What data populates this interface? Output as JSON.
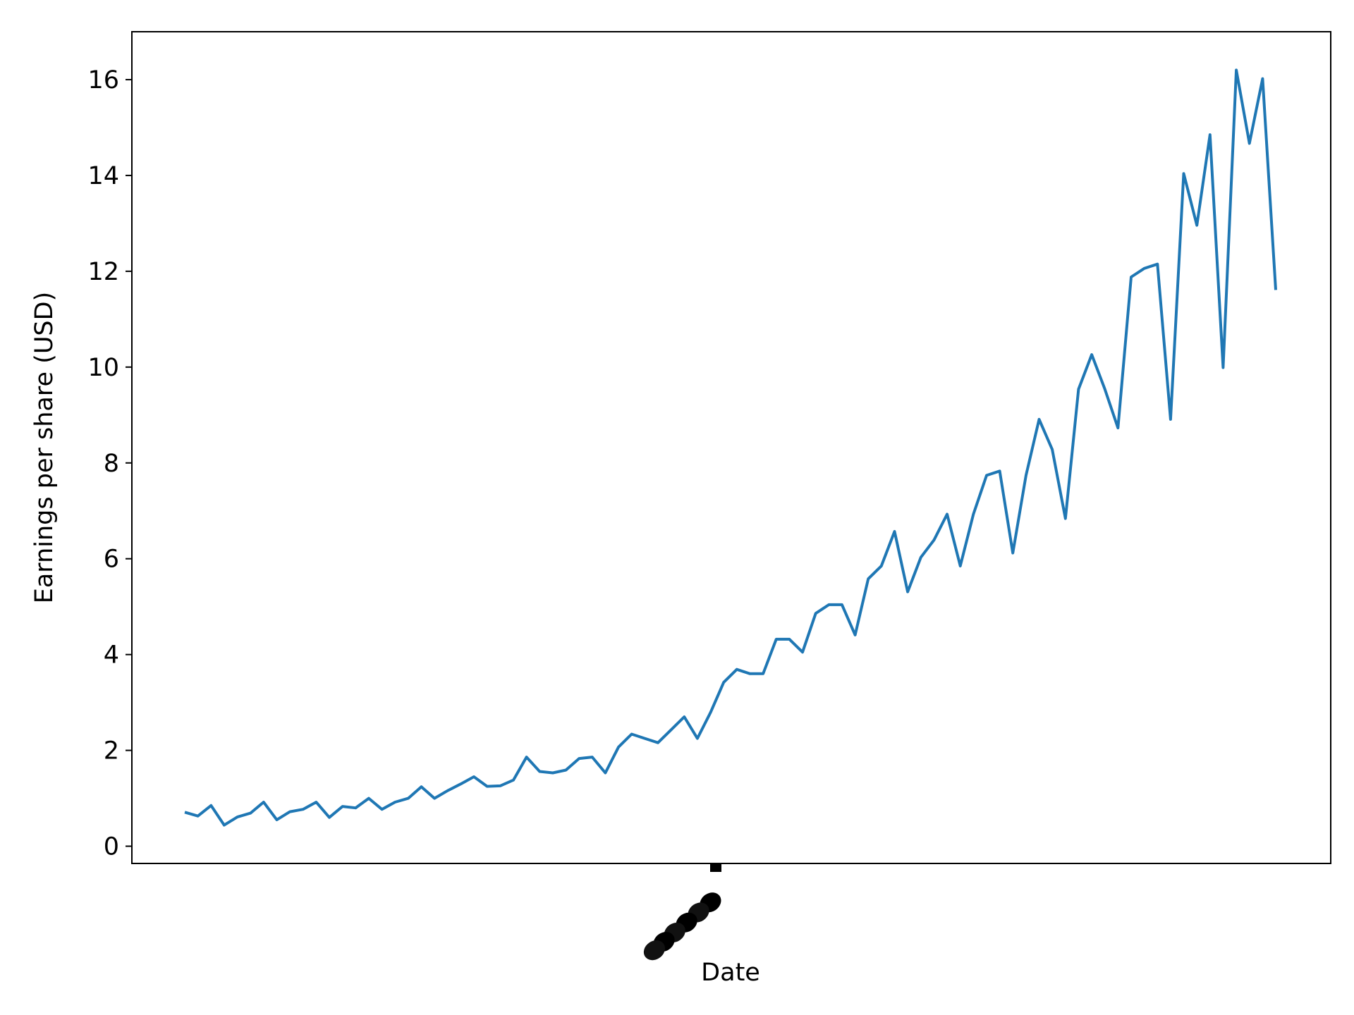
{
  "chart_data": {
    "type": "line",
    "title": "",
    "xlabel": "Date",
    "ylabel": "Earnings per share (USD)",
    "ylim": [
      -0.36,
      17.0
    ],
    "yticks": [
      0,
      2,
      4,
      6,
      8,
      10,
      12,
      14,
      16
    ],
    "xtick_labels_overprinted": true,
    "color": "#1f77b4",
    "grid": false,
    "series": [
      {
        "values": [
          0.71,
          0.63,
          0.85,
          0.44,
          0.61,
          0.69,
          0.92,
          0.55,
          0.72,
          0.77,
          0.92,
          0.6,
          0.83,
          0.8,
          1.0,
          0.77,
          0.92,
          1.0,
          1.24,
          1.0,
          1.16,
          1.3,
          1.45,
          1.25,
          1.26,
          1.38,
          1.86,
          1.56,
          1.53,
          1.59,
          1.83,
          1.86,
          1.53,
          2.07,
          2.34,
          2.25,
          2.16,
          2.43,
          2.7,
          2.25,
          2.79,
          3.42,
          3.69,
          3.6,
          3.6,
          4.32,
          4.32,
          4.05,
          4.86,
          5.04,
          5.04,
          4.41,
          5.58,
          5.85,
          6.57,
          5.31,
          6.03,
          6.39,
          6.93,
          5.85,
          6.93,
          7.74,
          7.83,
          6.12,
          7.74,
          8.91,
          8.28,
          6.84,
          9.54,
          10.26,
          9.54,
          8.73,
          11.88,
          12.06,
          12.15,
          8.91,
          14.04,
          12.96,
          14.85,
          9.99,
          16.2,
          14.67,
          16.02,
          11.61
        ]
      }
    ]
  }
}
